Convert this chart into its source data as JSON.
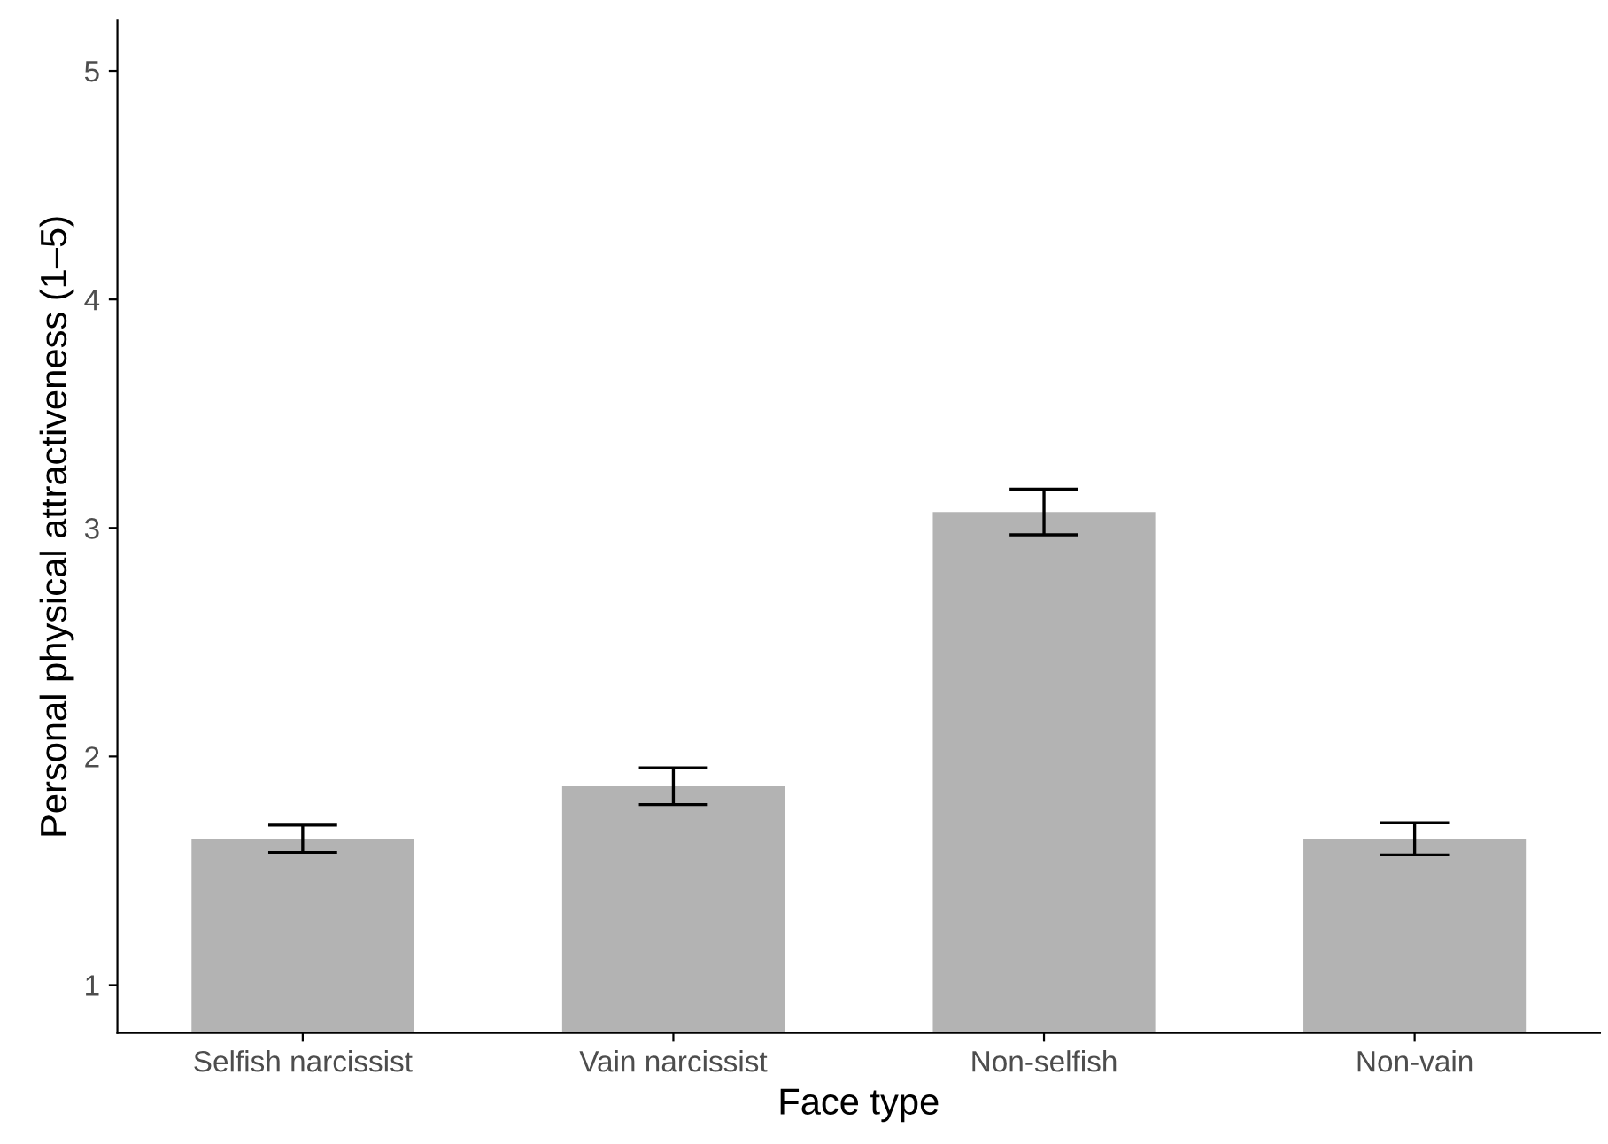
{
  "chart_data": {
    "type": "bar",
    "xlabel": "Face type",
    "ylabel": "Personal physical attractiveness (1–5)",
    "categories": [
      "Selfish narcissist",
      "Vain narcissist",
      "Non-selfish",
      "Non-vain"
    ],
    "values": [
      1.64,
      1.87,
      3.07,
      1.64
    ],
    "errors": [
      0.06,
      0.08,
      0.1,
      0.07
    ],
    "color": "#b3b3b3",
    "ylim": [
      0.79,
      5.22
    ],
    "yticks": [
      1,
      2,
      3,
      4,
      5
    ],
    "grid": false
  }
}
